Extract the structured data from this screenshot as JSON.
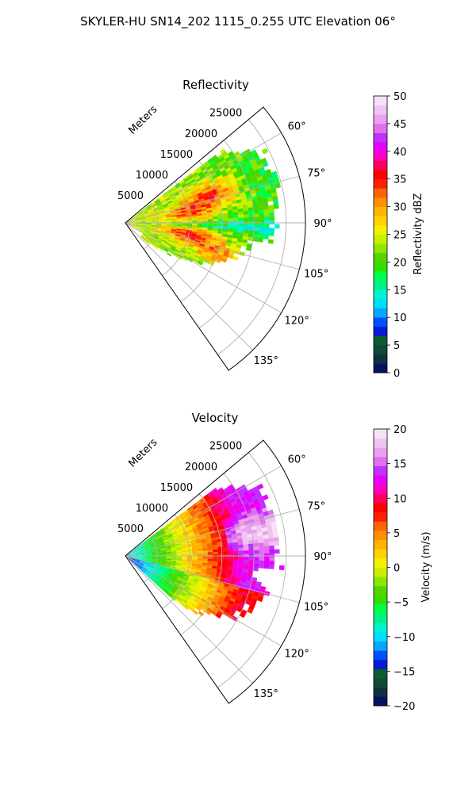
{
  "figure": {
    "suptitle": "SKYLER-HU  SN14_202  1115_0.255 UTC Elevation 06°"
  },
  "chart_data": [
    {
      "type": "heatmap",
      "projection": "polar-sector",
      "title": "Reflectivity",
      "radial_axis_label": "Meters",
      "radial_ticks": [
        5000,
        10000,
        15000,
        20000,
        25000
      ],
      "radial_tick_labels": [
        "5000",
        "10000",
        "15000",
        "20000",
        "25000"
      ],
      "rmax": 28000,
      "data_range": 25000,
      "theta_range_deg": [
        50,
        145
      ],
      "theta_ticks_deg": [
        60,
        75,
        90,
        105,
        120,
        135
      ],
      "theta_tick_labels": [
        "60°",
        "75°",
        "90°",
        "105°",
        "120°",
        "135°"
      ],
      "grid": true,
      "colorbar": {
        "label": "Reflectivity dBZ",
        "min": 0,
        "max": 50,
        "ticks": [
          0,
          5,
          10,
          15,
          20,
          25,
          30,
          35,
          40,
          45,
          50
        ],
        "tick_labels": [
          "0",
          "5",
          "10",
          "15",
          "20",
          "25",
          "30",
          "35",
          "40",
          "45",
          "50"
        ],
        "colors": [
          "#06145e",
          "#0d3240",
          "#0f4a38",
          "#0c5e2e",
          "#0a1ad4",
          "#0050ff",
          "#00a8ff",
          "#00dcff",
          "#00f4d0",
          "#00f08a",
          "#00ff4a",
          "#32e000",
          "#55d400",
          "#8ce800",
          "#c8f000",
          "#f5f000",
          "#ffd200",
          "#ffb400",
          "#ff9000",
          "#ff6400",
          "#ff2000",
          "#ff0000",
          "#ff0060",
          "#ff00c0",
          "#e600ff",
          "#c030ff",
          "#e070f0",
          "#eca0ee",
          "#f0c4f2",
          "#f6e2f8"
        ]
      },
      "field_summary": {
        "typical_range": [
          18,
          35
        ],
        "core_maxima": [
          [
            72,
            14000,
            34
          ],
          [
            80,
            10000,
            32
          ],
          [
            100,
            10000,
            34
          ],
          [
            108,
            15000,
            31
          ]
        ],
        "weak_band_deg": 92,
        "max_extent_m": 24500
      }
    },
    {
      "type": "heatmap",
      "projection": "polar-sector",
      "title": "Velocity",
      "radial_axis_label": "Meters",
      "radial_ticks": [
        5000,
        10000,
        15000,
        20000,
        25000
      ],
      "radial_tick_labels": [
        "5000",
        "10000",
        "15000",
        "20000",
        "25000"
      ],
      "rmax": 28000,
      "data_range": 24500,
      "theta_range_deg": [
        50,
        145
      ],
      "theta_ticks_deg": [
        60,
        75,
        90,
        105,
        120,
        135
      ],
      "theta_tick_labels": [
        "60°",
        "75°",
        "90°",
        "105°",
        "120°",
        "135°"
      ],
      "grid": true,
      "colorbar": {
        "label": "Velocity (m/s)",
        "min": -20,
        "max": 20,
        "ticks": [
          -20,
          -15,
          -10,
          -5,
          0,
          5,
          10,
          15,
          20
        ],
        "tick_labels": [
          "−20",
          "−15",
          "−10",
          "−5",
          "0",
          "5",
          "10",
          "15",
          "20"
        ],
        "colors": [
          "#06145e",
          "#0d3240",
          "#0f4a38",
          "#0c5e2e",
          "#0a1ad4",
          "#0050ff",
          "#00a8ff",
          "#00dcff",
          "#00f4d0",
          "#00f08a",
          "#00ff4a",
          "#32e000",
          "#55d400",
          "#8ce800",
          "#c8f000",
          "#f5f000",
          "#ffd200",
          "#ffb400",
          "#ff9000",
          "#ff6400",
          "#ff2000",
          "#ff0000",
          "#ff0060",
          "#ff00c0",
          "#e600ff",
          "#c030ff",
          "#e070f0",
          "#eca0ee",
          "#f0c4f2",
          "#f6e2f8"
        ]
      },
      "field_summary": {
        "near_range_value": -10,
        "far_range_value": 12,
        "max_value_deg": 78,
        "max_value": 16,
        "max_extent_m": 24500
      }
    }
  ]
}
